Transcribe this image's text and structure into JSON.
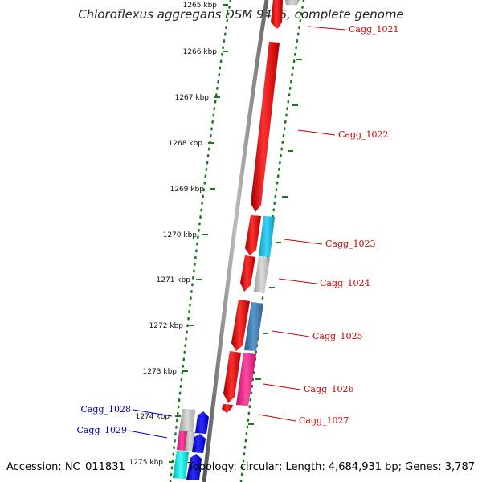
{
  "title": "Chloroflexus aggregans DSM 9485, complete genome",
  "accession_label": "Accession: NC_011831",
  "topology_label": "Topology: circular; Length: 4,684,931 bp; Genes: 3,787",
  "colors": {
    "backbone": "#7f7f7f",
    "tick": "#1a7a1a",
    "forward_gene": "#e00000",
    "reverse_gene": "#0000dd",
    "label_forward": "#cc0000",
    "label_reverse": "#0000bb",
    "grey_gene": "#bdbdbd",
    "cyan_gene": "#17c0e8",
    "steel_gene": "#3f7fb5",
    "pink_gene": "#ee2288",
    "aqua_gene": "#00dddd"
  },
  "ticks": [
    {
      "label": "1265 kbp"
    },
    {
      "label": "1266 kbp"
    },
    {
      "label": "1267 kbp"
    },
    {
      "label": "1268 kbp"
    },
    {
      "label": "1269 kbp"
    },
    {
      "label": "1270 kbp"
    },
    {
      "label": "1271 kbp"
    },
    {
      "label": "1272 kbp"
    },
    {
      "label": "1273 kbp"
    },
    {
      "label": "1274 kbp"
    },
    {
      "label": "1275 kbp"
    }
  ],
  "gene_labels": [
    {
      "name": "Cagg_1021",
      "strand": "forward"
    },
    {
      "name": "Cagg_1022",
      "strand": "forward"
    },
    {
      "name": "Cagg_1023",
      "strand": "forward"
    },
    {
      "name": "Cagg_1024",
      "strand": "forward"
    },
    {
      "name": "Cagg_1025",
      "strand": "forward"
    },
    {
      "name": "Cagg_1026",
      "strand": "forward"
    },
    {
      "name": "Cagg_1027",
      "strand": "forward"
    },
    {
      "name": "Cagg_1028",
      "strand": "reverse"
    },
    {
      "name": "Cagg_1029",
      "strand": "reverse"
    }
  ]
}
